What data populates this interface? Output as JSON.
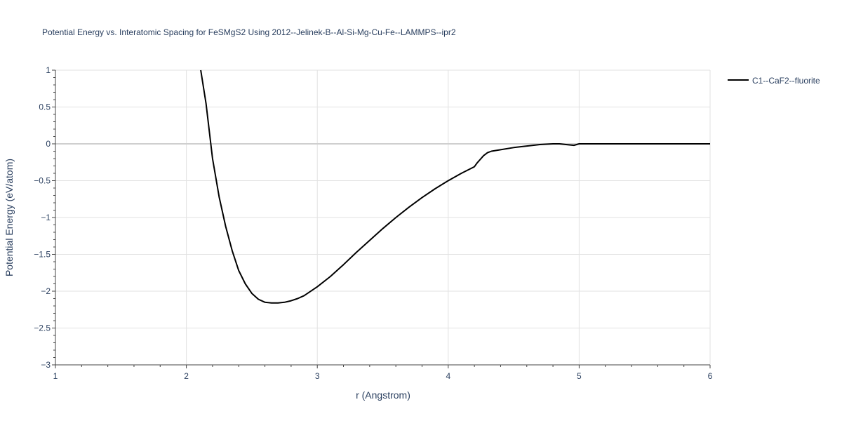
{
  "chart_data": {
    "type": "line",
    "title": "Potential Energy vs. Interatomic Spacing for FeSMgS2 Using 2012--Jelinek-B--Al-Si-Mg-Cu-Fe--LAMMPS--ipr2",
    "xlabel": "r (Angstrom)",
    "ylabel": "Potential Energy (eV/atom)",
    "xlim": [
      1,
      6
    ],
    "ylim": [
      -3,
      1
    ],
    "x_ticks": [
      1,
      2,
      3,
      4,
      5,
      6
    ],
    "x_tick_labels": [
      "1",
      "2",
      "3",
      "4",
      "5",
      "6"
    ],
    "y_ticks": [
      1,
      0.5,
      0,
      -0.5,
      -1,
      -1.5,
      -2,
      -2.5,
      -3
    ],
    "y_tick_labels": [
      "1",
      "0.5",
      "0",
      "−0.5",
      "−1",
      "−1.5",
      "−2",
      "−2.5",
      "−3"
    ],
    "grid": true,
    "legend_position": "top-right",
    "series": [
      {
        "name": "C1--CaF2--fluorite",
        "color": "#000000",
        "x": [
          2.11,
          2.15,
          2.2,
          2.25,
          2.3,
          2.35,
          2.4,
          2.45,
          2.5,
          2.55,
          2.6,
          2.65,
          2.7,
          2.75,
          2.8,
          2.85,
          2.9,
          3.0,
          3.1,
          3.2,
          3.3,
          3.4,
          3.5,
          3.6,
          3.7,
          3.8,
          3.9,
          4.0,
          4.1,
          4.2,
          4.22,
          4.24,
          4.27,
          4.3,
          4.33,
          4.4,
          4.5,
          4.6,
          4.7,
          4.8,
          4.85,
          4.9,
          4.96,
          5.0,
          5.5,
          6.0
        ],
        "y": [
          1.0,
          0.55,
          -0.2,
          -0.72,
          -1.12,
          -1.45,
          -1.72,
          -1.9,
          -2.03,
          -2.11,
          -2.15,
          -2.16,
          -2.16,
          -2.15,
          -2.13,
          -2.1,
          -2.06,
          -1.94,
          -1.8,
          -1.64,
          -1.47,
          -1.31,
          -1.15,
          -1.0,
          -0.86,
          -0.73,
          -0.61,
          -0.5,
          -0.4,
          -0.31,
          -0.26,
          -0.22,
          -0.16,
          -0.12,
          -0.1,
          -0.08,
          -0.05,
          -0.03,
          -0.01,
          0.0,
          0.0,
          -0.01,
          -0.02,
          0.0,
          0.0,
          0.0
        ]
      }
    ]
  }
}
